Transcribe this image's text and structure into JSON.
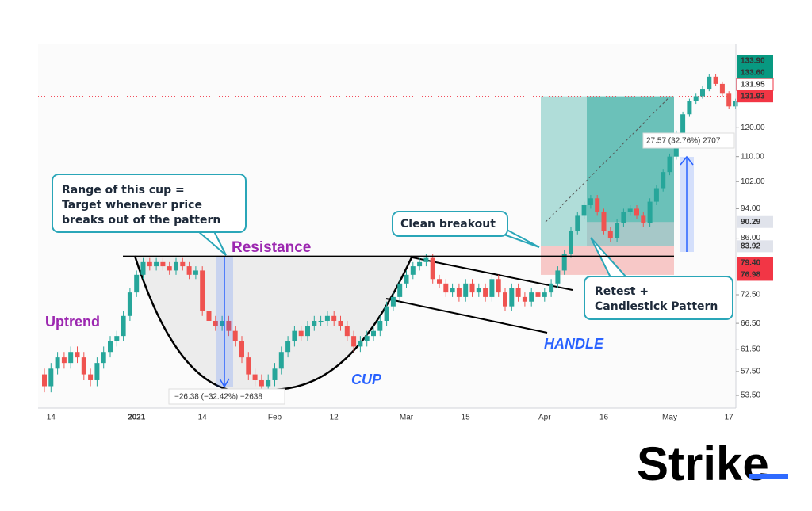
{
  "chart_data": {
    "type": "candlestick",
    "categories": [
      null,
      "14",
      null,
      null,
      null,
      null,
      null,
      null,
      null,
      null,
      null,
      null,
      null,
      null,
      "2021",
      null,
      null,
      null,
      null,
      null,
      null,
      null,
      null,
      null,
      "14",
      null,
      null,
      null,
      null,
      null,
      null,
      null,
      null,
      null,
      null,
      "Feb",
      null,
      null,
      null,
      null,
      null,
      null,
      null,
      null,
      "12",
      null,
      null,
      null,
      null,
      null,
      null,
      null,
      null,
      null,
      null,
      "Mar",
      null,
      null,
      null,
      null,
      null,
      null,
      null,
      null,
      "15",
      null,
      null,
      null,
      null,
      null,
      null,
      null,
      null,
      null,
      null,
      null,
      "Apr",
      null,
      null,
      null,
      null,
      null,
      null,
      null,
      null,
      "16",
      null,
      null,
      null,
      null,
      null,
      null,
      null,
      null,
      null,
      "May",
      null,
      null,
      null,
      null,
      null,
      null,
      null,
      null,
      "17",
      null
    ],
    "open": [
      57,
      55,
      58,
      60,
      59,
      61,
      60,
      57,
      56,
      59,
      61,
      63,
      64,
      68,
      73,
      77,
      80,
      79,
      80,
      79,
      78,
      80,
      79,
      77,
      78,
      69,
      67,
      66,
      67,
      65,
      63,
      60,
      57,
      56,
      55,
      56,
      58,
      61,
      63,
      65,
      64,
      66,
      67,
      67,
      68,
      67,
      66,
      64,
      62,
      63,
      64,
      65,
      67,
      70,
      72,
      75,
      77,
      79,
      80,
      81,
      76,
      75,
      73,
      74,
      72,
      75,
      73,
      74,
      72,
      76,
      73,
      70,
      74,
      72,
      71,
      73,
      72,
      73,
      75,
      78,
      82,
      88,
      92,
      95,
      97,
      93,
      88,
      86,
      90,
      93,
      94,
      92,
      90,
      96,
      100,
      105,
      110,
      118,
      125,
      130,
      132,
      135,
      140,
      137,
      133,
      128
    ],
    "high": [
      58,
      59,
      61,
      61,
      62,
      62,
      61,
      58,
      60,
      62,
      64,
      65,
      69,
      74,
      78,
      81,
      81,
      81,
      81,
      80,
      81,
      81,
      80,
      79,
      79,
      70,
      68,
      68,
      68,
      66,
      64,
      61,
      58,
      57,
      57,
      59,
      62,
      64,
      66,
      66,
      67,
      68,
      68,
      69,
      69,
      68,
      67,
      65,
      64,
      65,
      66,
      68,
      71,
      73,
      76,
      78,
      80,
      81,
      82,
      82,
      77,
      76,
      75,
      75,
      76,
      76,
      75,
      75,
      77,
      77,
      74,
      75,
      75,
      73,
      74,
      74,
      74,
      76,
      79,
      83,
      89,
      93,
      96,
      98,
      98,
      94,
      89,
      91,
      94,
      95,
      95,
      93,
      97,
      101,
      106,
      111,
      119,
      126,
      131,
      133,
      136,
      141,
      141,
      138,
      134,
      131
    ],
    "low": [
      54,
      54,
      57,
      58,
      58,
      59,
      56,
      55,
      55,
      58,
      60,
      62,
      63,
      67,
      72,
      76,
      78,
      78,
      78,
      77,
      77,
      78,
      76,
      76,
      68,
      66,
      65,
      65,
      64,
      62,
      59,
      56,
      55,
      54,
      54,
      55,
      57,
      60,
      62,
      63,
      63,
      65,
      66,
      66,
      66,
      65,
      63,
      61,
      61,
      62,
      63,
      64,
      66,
      69,
      71,
      74,
      76,
      78,
      79,
      75,
      74,
      72,
      72,
      71,
      71,
      72,
      72,
      71,
      71,
      72,
      69,
      69,
      71,
      70,
      70,
      71,
      71,
      72,
      74,
      77,
      81,
      87,
      91,
      94,
      92,
      87,
      85,
      85,
      89,
      92,
      91,
      89,
      89,
      95,
      99,
      104,
      109,
      117,
      124,
      129,
      131,
      134,
      136,
      132,
      127,
      127
    ],
    "close": [
      55,
      58,
      60,
      59,
      61,
      60,
      57,
      56,
      59,
      61,
      63,
      64,
      68,
      73,
      77,
      80,
      79,
      80,
      79,
      78,
      80,
      79,
      77,
      78,
      69,
      67,
      66,
      67,
      65,
      63,
      60,
      57,
      56,
      55,
      56,
      58,
      61,
      63,
      65,
      64,
      66,
      67,
      67,
      68,
      67,
      66,
      64,
      62,
      63,
      64,
      65,
      67,
      70,
      72,
      75,
      77,
      79,
      80,
      81,
      76,
      75,
      73,
      74,
      72,
      75,
      73,
      74,
      72,
      76,
      73,
      70,
      74,
      72,
      71,
      73,
      72,
      73,
      75,
      78,
      82,
      88,
      92,
      95,
      97,
      93,
      88,
      86,
      90,
      93,
      94,
      92,
      90,
      96,
      100,
      105,
      110,
      118,
      125,
      130,
      132,
      135,
      140,
      137,
      133,
      128,
      130
    ],
    "up_color": "#26a69a",
    "down_color": "#ef5350",
    "y_scale": "log",
    "ylim": [
      51.5,
      150
    ],
    "yticks": [
      {
        "value": 53.5,
        "label": "53.50"
      },
      {
        "value": 57.5,
        "label": "57.50"
      },
      {
        "value": 61.5,
        "label": "61.50"
      },
      {
        "value": 66.5,
        "label": "66.50"
      },
      {
        "value": 72.5,
        "label": "72.50"
      },
      {
        "value": 86,
        "label": "86.00"
      },
      {
        "value": 94,
        "label": "94.00"
      },
      {
        "value": 102,
        "label": "102.00"
      },
      {
        "value": 110,
        "label": "110.00"
      },
      {
        "value": 120,
        "label": "120.00"
      }
    ],
    "price_labels": [
      {
        "value": 133.9,
        "label": "133.90",
        "color": "#089981",
        "text_color": "#ffffff"
      },
      {
        "value": 133.6,
        "label": "133.60",
        "color": "#089981",
        "text_color": "#ffffff"
      },
      {
        "value": 131.95,
        "label": "131.95",
        "color": "#ffffff",
        "text_color": "#f23645"
      },
      {
        "value": 131.93,
        "label": "131.93",
        "color": "#f23645",
        "text_color": "#ffffff"
      },
      {
        "value": 90.29,
        "label": "90.29",
        "color": "#e0e3eb",
        "text_color": "#131722"
      },
      {
        "value": 83.92,
        "label": "83.92",
        "color": "#e0e3eb",
        "text_color": "#131722"
      },
      {
        "value": 79.4,
        "label": "79.40",
        "color": "#f23645",
        "text_color": "#ffffff"
      },
      {
        "value": 76.98,
        "label": "76.98",
        "color": "#f23645",
        "text_color": "#ffffff"
      }
    ],
    "resistance_level": 81.4,
    "texts": {
      "uptrend": "Uptrend",
      "resistance": "Resistance",
      "cup": "CUP",
      "handle": "HANDLE"
    },
    "callouts": [
      [
        "Range of this cup =",
        "Target whenever price",
        "breaks out of the pattern"
      ],
      [
        "Clean breakout"
      ],
      [
        "Retest +",
        "Candlestick Pattern"
      ]
    ],
    "measures": [
      "−26.38 (−32.42%) −2638",
      "27.57 (32.76%) 2707"
    ]
  },
  "brand": "Strike"
}
